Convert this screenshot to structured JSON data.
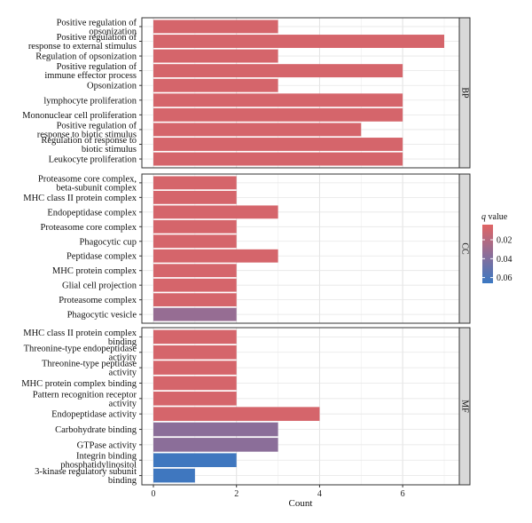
{
  "chart_data": {
    "type": "bar",
    "orientation": "horizontal",
    "xlabel": "Count",
    "xlim": [
      0,
      7.4
    ],
    "xticks": [
      0,
      2,
      4,
      6
    ],
    "grid": true,
    "legend": {
      "title_prefix": "q",
      "title_suffix": " value",
      "placement": "right",
      "range": [
        0.004,
        0.066
      ],
      "ticks": [
        0.02,
        0.04,
        0.06
      ],
      "tick_labels": [
        "0.02",
        "0.04",
        "0.06"
      ],
      "low_color": "#E06464",
      "high_color": "#3A78C2"
    },
    "facets": [
      {
        "name": "BP",
        "bars": [
          {
            "label": [
              "Positive regulation of",
              "opsonization"
            ],
            "value": 3,
            "q": 0.008
          },
          {
            "label": [
              "Positive regulation of",
              "response to external stimulus"
            ],
            "value": 7,
            "q": 0.008
          },
          {
            "label": [
              "Regulation of opsonization"
            ],
            "value": 3,
            "q": 0.008
          },
          {
            "label": [
              "Positive regulation of",
              "immune effector process"
            ],
            "value": 6,
            "q": 0.008
          },
          {
            "label": [
              "Opsonization"
            ],
            "value": 3,
            "q": 0.008
          },
          {
            "label": [
              "lymphocyte proliferation"
            ],
            "value": 6,
            "q": 0.008
          },
          {
            "label": [
              "Mononuclear cell proliferation"
            ],
            "value": 6,
            "q": 0.008
          },
          {
            "label": [
              "Positive regulation of",
              "response to biotic stimulus"
            ],
            "value": 5,
            "q": 0.008
          },
          {
            "label": [
              "Regulation of response to",
              "biotic stimulus"
            ],
            "value": 6,
            "q": 0.008
          },
          {
            "label": [
              "Leukocyte proliferation"
            ],
            "value": 6,
            "q": 0.008
          }
        ]
      },
      {
        "name": "CC",
        "bars": [
          {
            "label": [
              "Proteasome core complex,",
              "beta-subunit complex"
            ],
            "value": 2,
            "q": 0.008
          },
          {
            "label": [
              "MHC class II protein complex"
            ],
            "value": 2,
            "q": 0.008
          },
          {
            "label": [
              "Endopeptidase complex"
            ],
            "value": 3,
            "q": 0.008
          },
          {
            "label": [
              "Proteasome core complex"
            ],
            "value": 2,
            "q": 0.008
          },
          {
            "label": [
              "Phagocytic cup"
            ],
            "value": 2,
            "q": 0.008
          },
          {
            "label": [
              "Peptidase complex"
            ],
            "value": 3,
            "q": 0.008
          },
          {
            "label": [
              "MHC protein complex"
            ],
            "value": 2,
            "q": 0.008
          },
          {
            "label": [
              "Glial cell projection"
            ],
            "value": 2,
            "q": 0.008
          },
          {
            "label": [
              "Proteasome complex"
            ],
            "value": 2,
            "q": 0.008
          },
          {
            "label": [
              "Phagocytic vesicle"
            ],
            "value": 2,
            "q": 0.032
          }
        ]
      },
      {
        "name": "MF",
        "bars": [
          {
            "label": [
              "MHC class II protein complex",
              "binding"
            ],
            "value": 2,
            "q": 0.008
          },
          {
            "label": [
              "Threonine-type endopeptidase",
              "activity"
            ],
            "value": 2,
            "q": 0.008
          },
          {
            "label": [
              "Threonine-type peptidase",
              "activity"
            ],
            "value": 2,
            "q": 0.008
          },
          {
            "label": [
              "MHC protein complex binding"
            ],
            "value": 2,
            "q": 0.008
          },
          {
            "label": [
              "Pattern recognition receptor",
              "activity"
            ],
            "value": 2,
            "q": 0.008
          },
          {
            "label": [
              "Endopeptidase activity"
            ],
            "value": 4,
            "q": 0.008
          },
          {
            "label": [
              "Carbohydrate binding"
            ],
            "value": 3,
            "q": 0.036
          },
          {
            "label": [
              "GTPase activity"
            ],
            "value": 3,
            "q": 0.036
          },
          {
            "label": [
              "Integrin binding",
              "phosphatidylinositol"
            ],
            "value": 2,
            "q": 0.064
          },
          {
            "label": [
              "3-kinase regulatory subunit",
              "binding"
            ],
            "value": 1,
            "q": 0.064
          }
        ]
      }
    ]
  }
}
